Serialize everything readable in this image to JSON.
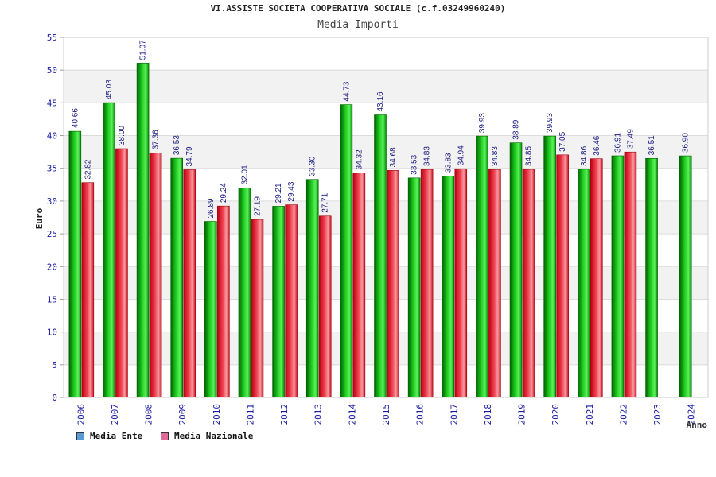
{
  "chart_data": {
    "type": "bar",
    "title": "VI.ASSISTE SOCIETA COOPERATIVA SOCIALE (c.f.03249960240)",
    "subtitle": "Media Importi",
    "ylabel": "Euro",
    "xlabel": "Anno",
    "ylim": [
      0,
      55
    ],
    "yticks": [
      "0",
      "5",
      "10",
      "15",
      "20",
      "25",
      "30",
      "35",
      "40",
      "45",
      "50",
      "55"
    ],
    "categories": [
      "2006",
      "2007",
      "2008",
      "2009",
      "2010",
      "2011",
      "2012",
      "2013",
      "2014",
      "2015",
      "2016",
      "2017",
      "2018",
      "2019",
      "2020",
      "2021",
      "2022",
      "2023",
      "2024"
    ],
    "series": [
      {
        "name": "Media Ente",
        "color": "#00b000",
        "values": [
          40.66,
          45.03,
          51.07,
          36.53,
          26.89,
          32.01,
          29.21,
          33.3,
          44.73,
          43.16,
          33.53,
          33.83,
          39.93,
          38.89,
          39.93,
          34.86,
          36.91,
          36.51,
          36.9
        ],
        "labels": [
          "40.66",
          "45.03",
          "51.07",
          "36.53",
          "26.89",
          "32.01",
          "29.21",
          "33.30",
          "44.73",
          "43.16",
          "33.53",
          "33.83",
          "39.93",
          "38.89",
          "39.93",
          "34.86",
          "36.91",
          "36.51",
          "36.90"
        ]
      },
      {
        "name": "Media Nazionale",
        "color": "#e8303a",
        "values": [
          32.82,
          38.0,
          37.36,
          34.79,
          29.24,
          27.19,
          29.43,
          27.71,
          34.32,
          34.68,
          34.83,
          34.94,
          34.83,
          34.85,
          37.05,
          36.46,
          37.49,
          null,
          null
        ],
        "labels": [
          "32.82",
          "38.00",
          "37.36",
          "34.79",
          "29.24",
          "27.19",
          "29.43",
          "27.71",
          "34.32",
          "34.68",
          "34.83",
          "34.94",
          "34.83",
          "34.85",
          "37.05",
          "36.46",
          "37.49",
          null,
          null
        ]
      }
    ],
    "legend": [
      {
        "label": "Media Ente",
        "color": "#5b9bd5"
      },
      {
        "label": "Media Nazionale",
        "color": "#e06a9a"
      }
    ]
  }
}
